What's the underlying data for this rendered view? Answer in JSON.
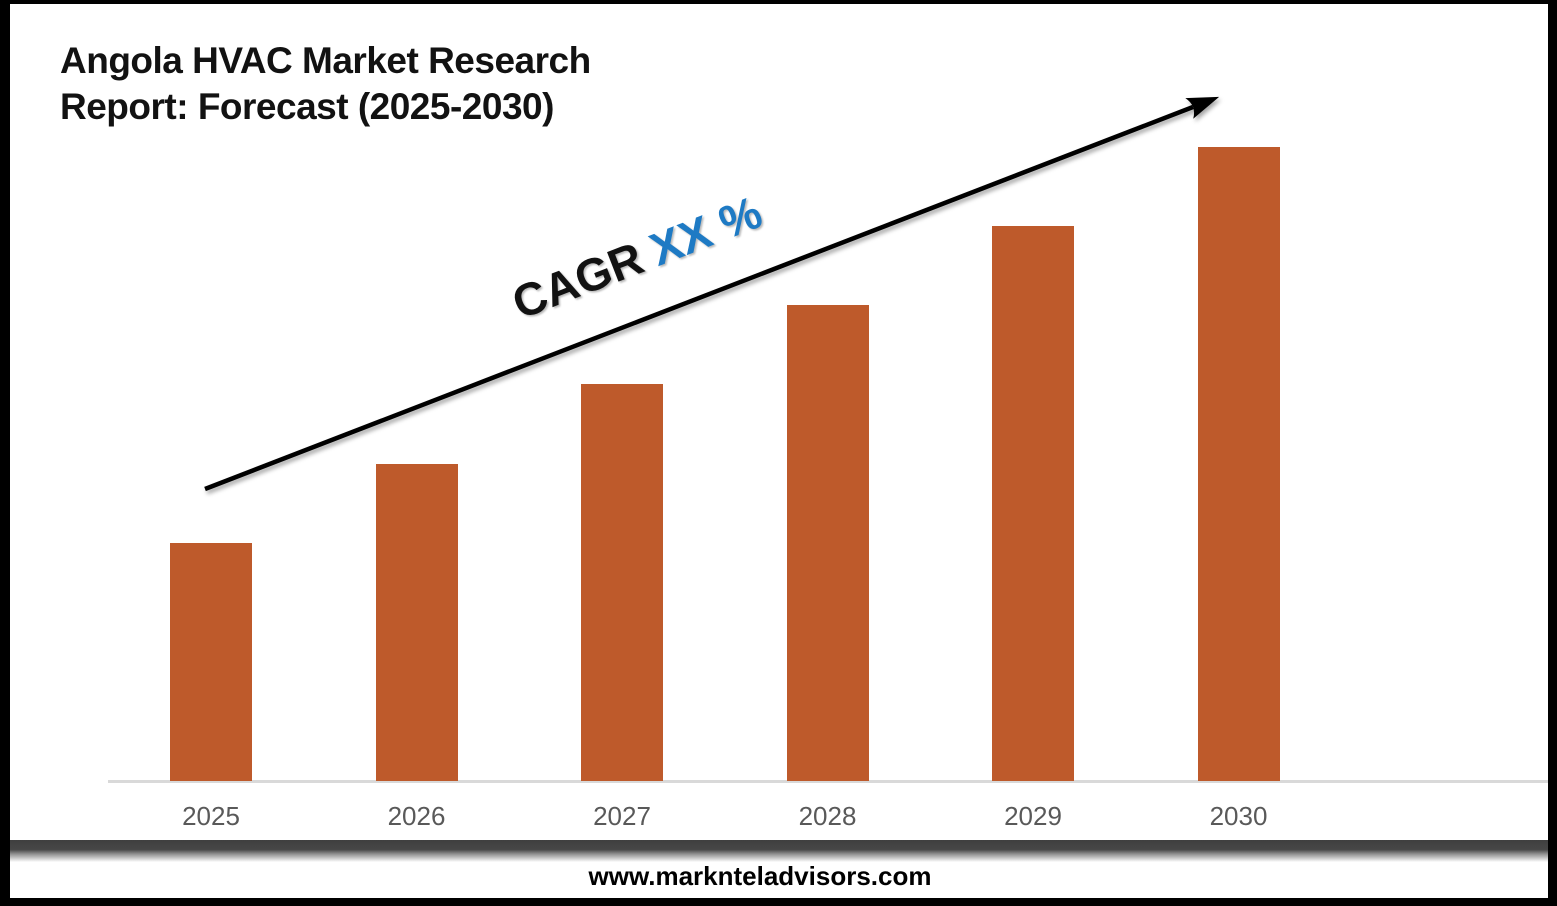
{
  "header": {
    "title_line1": "Angola HVAC Market Research",
    "title_line2": "Report: Forecast (2025-2030)"
  },
  "annotation": {
    "cagr_label": "CAGR",
    "cagr_value": "XX %"
  },
  "footer": {
    "website": "www.marknteladvisors.com"
  },
  "colors": {
    "bar": "#BE5A2B",
    "cagr_blue": "#1E7AC4",
    "arrow": "#000000",
    "axis_line": "#D9D9D9",
    "year_label": "#595959",
    "title_text": "#121212",
    "divider_dark": "#3F3F3F",
    "frame": "#000000"
  },
  "chart_data": {
    "type": "bar",
    "categories": [
      "2025",
      "2026",
      "2027",
      "2028",
      "2029",
      "2030"
    ],
    "values": [
      3,
      4,
      5,
      6,
      7,
      8
    ],
    "values_note": "no y-axis shown; values are relative units read from equal linear bar-height increments",
    "title": "Angola HVAC Market Research Report: Forecast (2025-2030)",
    "xlabel": "",
    "ylabel": "",
    "ylim": [
      0,
      9
    ],
    "grid": false,
    "legend": false,
    "annotation": "CAGR XX % with upward trend arrow"
  }
}
